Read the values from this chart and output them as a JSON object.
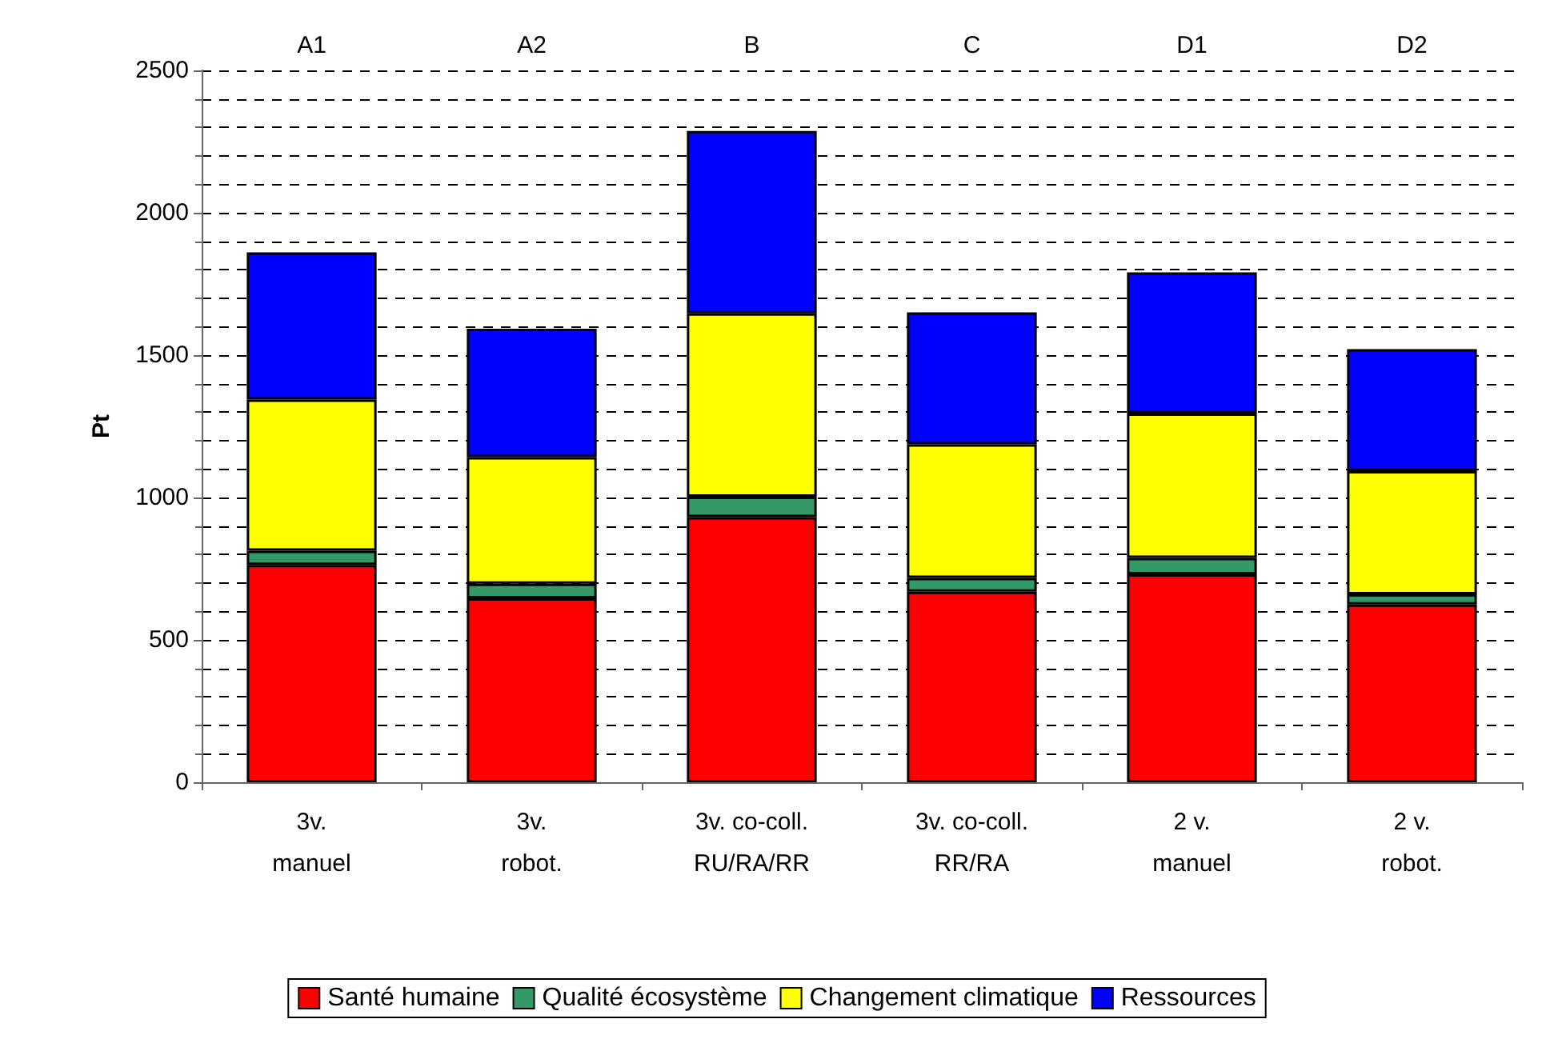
{
  "chart_data": {
    "type": "bar",
    "stacked": true,
    "ylabel": "Pt",
    "categories": [
      "3v.\nmanuel",
      "3v.\nrobot.",
      "3v. co-coll.\nRU/RA/RR",
      "3v. co-coll.\nRR/RA",
      "2 v.\nmanuel",
      "2 v.\nrobot."
    ],
    "annotations": [
      "A1",
      "A2",
      "B",
      "C",
      "D1",
      "D2"
    ],
    "series": [
      {
        "name": "Santé humaine",
        "color": "#ff0000",
        "values": [
          763,
          646,
          931,
          669,
          730,
          624
        ]
      },
      {
        "name": "Qualité écosystème",
        "color": "#339966",
        "values": [
          50,
          51,
          72,
          49,
          58,
          36
        ]
      },
      {
        "name": "Changement climatique",
        "color": "#ffff00",
        "values": [
          531,
          445,
          644,
          469,
          507,
          433
        ]
      },
      {
        "name": "Ressources",
        "color": "#0000ff",
        "values": [
          517,
          451,
          640,
          463,
          496,
          428
        ]
      }
    ],
    "ylim": [
      0,
      2500
    ],
    "yticks": [
      0,
      500,
      1000,
      1500,
      2000,
      2500
    ],
    "grid": "y",
    "legend": "bottom"
  }
}
